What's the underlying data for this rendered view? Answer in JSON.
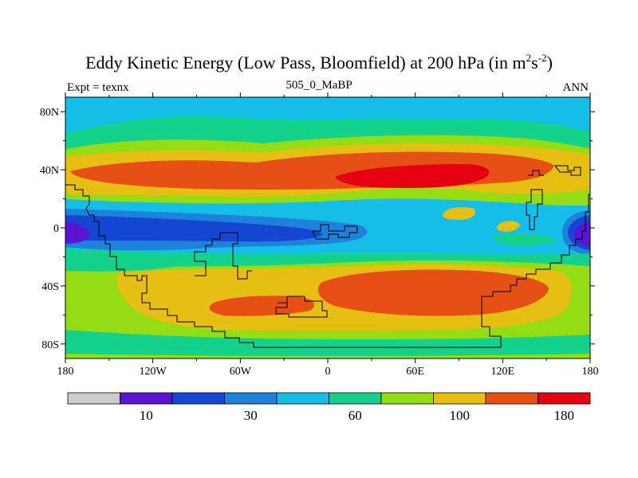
{
  "chart_data": {
    "type": "heatmap",
    "title_main": "Eddy Kinetic Energy (Low Pass, Bloomfield) at 200 hPa (in m",
    "title_unit_m_exp": "2",
    "title_s": "s",
    "title_unit_s_exp": "-2",
    "title_close": ")",
    "subtitle_left": "Expt = texnx",
    "subtitle_center": "505_0_MaBP",
    "subtitle_right": "ANN",
    "x_ticks": [
      "180",
      "120W",
      "60W",
      "0",
      "60E",
      "120E",
      "180"
    ],
    "x_tick_values": [
      -180,
      -120,
      -60,
      0,
      60,
      120,
      180
    ],
    "y_ticks": [
      "80N",
      "40N",
      "0",
      "40S",
      "80S"
    ],
    "y_tick_values": [
      80,
      40,
      0,
      -40,
      -80
    ],
    "xlim": [
      -180,
      180
    ],
    "ylim": [
      -90,
      90
    ],
    "colorbar": {
      "colors": [
        "#cccccc",
        "#5a14d2",
        "#1446d2",
        "#1e82dc",
        "#14bee6",
        "#14d28c",
        "#96dc14",
        "#e6be14",
        "#e65014",
        "#e60014"
      ],
      "labels": [
        "10",
        "30",
        "60",
        "100",
        "180"
      ],
      "label_boundaries": [
        2,
        4,
        6,
        8,
        10
      ]
    },
    "bands": [
      {
        "name": "north-polar-cap",
        "color": "#14bee6"
      },
      {
        "name": "north-high-latitudes",
        "color": "#14d28c"
      },
      {
        "name": "north-midlatitude-band",
        "color": "#96dc14"
      },
      {
        "name": "north-jet-outer",
        "color": "#e6be14"
      },
      {
        "name": "north-jet-core",
        "color": "#e65014"
      },
      {
        "name": "north-jet-max",
        "color": "#e60014"
      },
      {
        "name": "tropics",
        "color": "#14bee6"
      },
      {
        "name": "equatorial-band",
        "color": "#1e82dc"
      },
      {
        "name": "equatorial-minimum",
        "color": "#1446d2"
      },
      {
        "name": "equatorial-extreme",
        "color": "#5a14d2"
      },
      {
        "name": "south-subtropics",
        "color": "#14d28c"
      },
      {
        "name": "south-midlatitude-band",
        "color": "#96dc14"
      },
      {
        "name": "south-jet-outer",
        "color": "#e6be14"
      },
      {
        "name": "south-jet-core",
        "color": "#e65014"
      },
      {
        "name": "south-polar-band",
        "color": "#14d28c"
      },
      {
        "name": "south-polar-cap",
        "color": "#96dc14"
      }
    ]
  }
}
